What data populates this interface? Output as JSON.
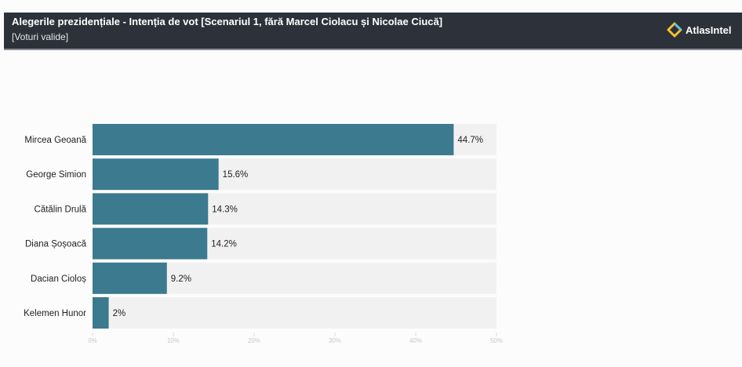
{
  "header": {
    "title": "Alegerile prezidențiale - Intenția de vot [Scenariul 1, fără Marcel Ciolacu și Nicolae Ciucă]",
    "subtitle": "[Voturi valide]",
    "brand": "AtlasIntel"
  },
  "colors": {
    "bar": "#3b7a8f",
    "track": "#f2f1f2"
  },
  "chart_data": {
    "type": "bar",
    "orientation": "horizontal",
    "title": "Alegerile prezidențiale - Intenția de vot [Scenariul 1, fără Marcel Ciolacu și Nicolae Ciucă]",
    "subtitle": "[Voturi valide]",
    "categories": [
      "Mircea Geoană",
      "George Simion",
      "Cătălin Drulă",
      "Diana Șoșoacă",
      "Dacian Cioloș",
      "Kelemen Hunor"
    ],
    "values": [
      44.7,
      15.6,
      14.3,
      14.2,
      9.2,
      2
    ],
    "value_labels": [
      "44.7%",
      "15.6%",
      "14.3%",
      "14.2%",
      "9.2%",
      "2%"
    ],
    "xlim": [
      0,
      50
    ],
    "ticks": [
      0,
      10,
      20,
      30,
      40,
      50
    ],
    "tick_labels": [
      "0%",
      "10%",
      "20%",
      "30%",
      "40%",
      "50%"
    ],
    "xlabel": "",
    "ylabel": ""
  }
}
